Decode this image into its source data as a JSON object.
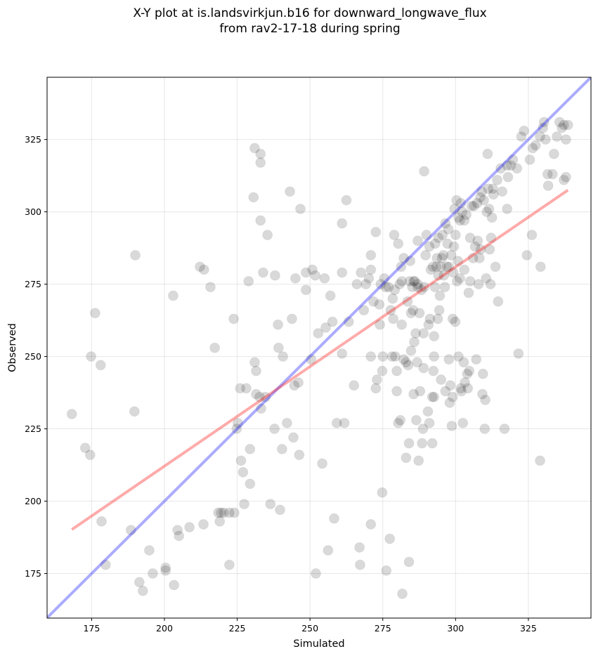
{
  "chart_data": {
    "type": "scatter",
    "title_line1": "X-Y plot at is.landsvirkjun.b16 for downward_longwave_flux",
    "title_line2": "from rav2-17-18 during spring",
    "xlabel": "Simulated",
    "ylabel": "Observed",
    "xlim": [
      159.7,
      346.5
    ],
    "ylim": [
      159.6,
      346.5
    ],
    "xticks": [
      175,
      200,
      225,
      250,
      275,
      300,
      325
    ],
    "yticks": [
      175,
      200,
      225,
      250,
      275,
      300,
      325
    ],
    "grid": true,
    "point_color": "#000000",
    "point_alpha": 0.15,
    "lines": [
      {
        "name": "1:1 line",
        "color": "#0000ff",
        "alpha": 0.33,
        "x": [
          159.7,
          346.5
        ],
        "y": [
          159.7,
          346.5
        ]
      },
      {
        "name": "regression",
        "color": "#ff0000",
        "alpha": 0.33,
        "x": [
          168.2,
          338.6
        ],
        "y": [
          190.2,
          307.5
        ]
      }
    ],
    "points": [
      [
        168.2,
        230.1
      ],
      [
        172.8,
        218.4
      ],
      [
        174.5,
        216
      ],
      [
        174.8,
        250
      ],
      [
        176.2,
        265
      ],
      [
        178.1,
        247
      ],
      [
        178.4,
        193
      ],
      [
        179.8,
        178
      ],
      [
        188.5,
        190
      ],
      [
        189.7,
        231
      ],
      [
        190,
        285
      ],
      [
        191.4,
        172
      ],
      [
        192.6,
        169
      ],
      [
        194.8,
        183
      ],
      [
        196,
        175
      ],
      [
        200.4,
        177
      ],
      [
        200.4,
        176
      ],
      [
        203,
        271
      ],
      [
        203.3,
        171
      ],
      [
        204.5,
        190
      ],
      [
        205,
        188
      ],
      [
        208.6,
        191
      ],
      [
        212.2,
        281
      ],
      [
        213.4,
        192
      ],
      [
        213.6,
        280
      ],
      [
        215.8,
        274
      ],
      [
        217.3,
        253
      ],
      [
        218.5,
        196
      ],
      [
        219.4,
        196
      ],
      [
        220.4,
        196
      ],
      [
        219,
        193
      ],
      [
        222.3,
        196
      ],
      [
        222.3,
        178
      ],
      [
        223.8,
        263
      ],
      [
        224,
        196
      ],
      [
        224.8,
        225
      ],
      [
        225.2,
        227
      ],
      [
        226,
        239
      ],
      [
        226.3,
        214
      ],
      [
        227,
        210
      ],
      [
        227.4,
        199
      ],
      [
        228.1,
        239
      ],
      [
        228.9,
        276
      ],
      [
        229.4,
        206
      ],
      [
        229.4,
        218
      ],
      [
        230.6,
        305
      ],
      [
        231,
        322
      ],
      [
        231,
        248
      ],
      [
        231.5,
        245
      ],
      [
        231.5,
        237
      ],
      [
        232.7,
        236
      ],
      [
        233,
        320
      ],
      [
        233,
        317
      ],
      [
        233,
        297
      ],
      [
        233.2,
        232
      ],
      [
        233.9,
        279
      ],
      [
        234.7,
        236
      ],
      [
        235.4,
        292
      ],
      [
        236.4,
        199
      ],
      [
        237.8,
        225
      ],
      [
        238,
        278
      ],
      [
        239,
        261
      ],
      [
        239.2,
        253
      ],
      [
        239.7,
        197
      ],
      [
        240.4,
        218
      ],
      [
        240.7,
        250
      ],
      [
        242.1,
        227
      ],
      [
        243.1,
        307
      ],
      [
        243.8,
        263
      ],
      [
        244.3,
        222
      ],
      [
        244.6,
        240
      ],
      [
        245,
        277
      ],
      [
        246,
        241
      ],
      [
        246.3,
        216
      ],
      [
        246.7,
        301
      ],
      [
        248.6,
        279
      ],
      [
        248.6,
        273
      ],
      [
        250.4,
        249
      ],
      [
        250.8,
        280
      ],
      [
        251.8,
        278
      ],
      [
        252,
        175
      ],
      [
        252.8,
        258
      ],
      [
        254.2,
        213
      ],
      [
        255,
        277
      ],
      [
        255.4,
        260
      ],
      [
        256.2,
        183
      ],
      [
        257,
        271
      ],
      [
        257.7,
        262
      ],
      [
        258.3,
        194
      ],
      [
        259.2,
        227
      ],
      [
        261,
        296
      ],
      [
        261,
        279
      ],
      [
        261,
        251
      ],
      [
        261.8,
        227
      ],
      [
        262.5,
        304
      ],
      [
        263.3,
        262
      ],
      [
        265.1,
        240
      ],
      [
        266.1,
        275
      ],
      [
        267,
        184
      ],
      [
        267.2,
        178
      ],
      [
        267.5,
        279
      ],
      [
        268.5,
        266
      ],
      [
        269.2,
        275
      ],
      [
        270.2,
        277
      ],
      [
        270.9,
        280
      ],
      [
        270.9,
        285
      ],
      [
        270.9,
        250
      ],
      [
        270.9,
        192
      ],
      [
        271.8,
        269
      ],
      [
        272.6,
        293
      ],
      [
        272.6,
        239
      ],
      [
        273,
        242
      ],
      [
        273.8,
        268
      ],
      [
        274,
        261
      ],
      [
        274.3,
        275
      ],
      [
        274.8,
        245
      ],
      [
        274.8,
        203
      ],
      [
        275,
        250
      ],
      [
        275.5,
        277
      ],
      [
        276,
        274
      ],
      [
        276.2,
        176
      ],
      [
        277,
        274
      ],
      [
        277.4,
        187
      ],
      [
        277.7,
        266
      ],
      [
        278.2,
        250
      ],
      [
        278.4,
        270
      ],
      [
        278.6,
        263
      ],
      [
        278.9,
        292
      ],
      [
        279.1,
        273
      ],
      [
        279.3,
        250
      ],
      [
        279.8,
        245
      ],
      [
        279.8,
        238
      ],
      [
        280.3,
        289
      ],
      [
        280.3,
        227
      ],
      [
        280.8,
        275
      ],
      [
        281,
        228
      ],
      [
        281.3,
        281
      ],
      [
        281.5,
        261
      ],
      [
        281.5,
        276
      ],
      [
        281.7,
        168
      ],
      [
        282.2,
        249
      ],
      [
        282.2,
        284
      ],
      [
        283,
        248
      ],
      [
        283,
        215
      ],
      [
        283.5,
        269
      ],
      [
        283.7,
        247
      ],
      [
        284,
        220
      ],
      [
        284,
        179
      ],
      [
        284.2,
        276
      ],
      [
        284.4,
        283
      ],
      [
        284.7,
        265
      ],
      [
        284.7,
        252
      ],
      [
        285.1,
        274
      ],
      [
        285.4,
        266
      ],
      [
        285.6,
        276
      ],
      [
        285.6,
        237
      ],
      [
        285.8,
        255
      ],
      [
        286,
        276
      ],
      [
        286.3,
        258
      ],
      [
        286.5,
        228
      ],
      [
        286.8,
        248
      ],
      [
        287,
        274
      ],
      [
        287,
        290
      ],
      [
        287,
        275
      ],
      [
        287.3,
        214
      ],
      [
        287.6,
        265
      ],
      [
        287.8,
        238
      ],
      [
        288.3,
        273
      ],
      [
        288.5,
        220
      ],
      [
        288.8,
        225
      ],
      [
        289,
        246
      ],
      [
        289,
        258
      ],
      [
        289.2,
        314
      ],
      [
        289.2,
        274
      ],
      [
        289.7,
        285
      ],
      [
        290,
        292
      ],
      [
        290.5,
        231
      ],
      [
        290.7,
        261
      ],
      [
        291,
        288
      ],
      [
        291,
        227
      ],
      [
        291.2,
        263
      ],
      [
        291.5,
        280
      ],
      [
        292,
        236
      ],
      [
        292,
        220
      ],
      [
        292.2,
        281
      ],
      [
        292.4,
        245
      ],
      [
        292.6,
        250
      ],
      [
        292.6,
        257
      ],
      [
        292.6,
        236
      ],
      [
        292.9,
        274
      ],
      [
        293,
        289
      ],
      [
        293.4,
        281
      ],
      [
        293.6,
        284
      ],
      [
        293.9,
        263
      ],
      [
        294.1,
        291
      ],
      [
        294.1,
        278
      ],
      [
        294.4,
        266
      ],
      [
        294.6,
        271
      ],
      [
        294.9,
        281
      ],
      [
        295,
        242
      ],
      [
        295.3,
        284
      ],
      [
        295.5,
        292
      ],
      [
        295.8,
        285
      ],
      [
        296,
        278
      ],
      [
        296.3,
        274
      ],
      [
        296.5,
        296
      ],
      [
        296.5,
        238
      ],
      [
        297,
        281
      ],
      [
        297.2,
        289
      ],
      [
        297.5,
        294
      ],
      [
        297.7,
        249
      ],
      [
        297.7,
        281
      ],
      [
        298,
        234
      ],
      [
        298.2,
        240
      ],
      [
        298.5,
        285
      ],
      [
        298.7,
        226
      ],
      [
        299,
        263
      ],
      [
        299,
        236
      ],
      [
        299.2,
        279
      ],
      [
        299.4,
        288
      ],
      [
        299.6,
        301
      ],
      [
        299.9,
        262
      ],
      [
        300,
        292
      ],
      [
        300.3,
        304
      ],
      [
        300.5,
        276
      ],
      [
        300.8,
        283
      ],
      [
        301,
        298
      ],
      [
        301,
        250
      ],
      [
        301.5,
        277
      ],
      [
        301.5,
        297
      ],
      [
        301.8,
        239
      ],
      [
        301.8,
        303
      ],
      [
        302,
        238
      ],
      [
        302.3,
        300
      ],
      [
        302.5,
        227
      ],
      [
        302.8,
        248
      ],
      [
        303,
        297
      ],
      [
        303,
        280
      ],
      [
        303.2,
        241
      ],
      [
        303.7,
        299
      ],
      [
        304,
        244
      ],
      [
        304.2,
        239
      ],
      [
        304.5,
        272
      ],
      [
        304.7,
        245
      ],
      [
        305,
        291
      ],
      [
        305,
        276
      ],
      [
        305.5,
        302
      ],
      [
        306,
        284
      ],
      [
        306.3,
        302
      ],
      [
        306.7,
        288
      ],
      [
        307.1,
        249
      ],
      [
        307.4,
        303
      ],
      [
        307.6,
        290
      ],
      [
        307.9,
        275
      ],
      [
        308.2,
        284
      ],
      [
        308.5,
        305
      ],
      [
        308.6,
        287
      ],
      [
        309,
        307
      ],
      [
        309.2,
        237
      ],
      [
        309.4,
        244
      ],
      [
        309.7,
        304
      ],
      [
        310,
        225
      ],
      [
        310.2,
        235
      ],
      [
        310.5,
        277
      ],
      [
        310.7,
        300
      ],
      [
        311,
        320
      ],
      [
        311.2,
        308
      ],
      [
        311.5,
        301
      ],
      [
        311.7,
        287
      ],
      [
        312,
        275
      ],
      [
        312.2,
        291
      ],
      [
        312.5,
        298
      ],
      [
        312.8,
        308
      ],
      [
        313,
        306
      ],
      [
        313.7,
        281
      ],
      [
        314.3,
        311
      ],
      [
        314.6,
        269
      ],
      [
        315.5,
        315
      ],
      [
        316,
        307
      ],
      [
        316.8,
        225
      ],
      [
        317.7,
        301
      ],
      [
        317.7,
        316
      ],
      [
        318,
        312
      ],
      [
        319,
        316
      ],
      [
        319.7,
        318
      ],
      [
        321.1,
        315
      ],
      [
        321.6,
        251
      ],
      [
        322.6,
        326
      ],
      [
        323.5,
        328
      ],
      [
        324.5,
        285
      ],
      [
        325.5,
        318
      ],
      [
        326.2,
        292
      ],
      [
        326.5,
        322
      ],
      [
        327.5,
        323
      ],
      [
        329,
        326
      ],
      [
        329,
        214
      ],
      [
        329.2,
        281
      ],
      [
        330,
        329
      ],
      [
        330.4,
        331
      ],
      [
        330.9,
        325
      ],
      [
        331.6,
        313
      ],
      [
        331.8,
        309
      ],
      [
        333.3,
        313
      ],
      [
        333.8,
        320
      ],
      [
        334.8,
        326
      ],
      [
        335.7,
        331
      ],
      [
        336.5,
        329
      ],
      [
        337.2,
        330
      ],
      [
        337.2,
        311
      ],
      [
        337.9,
        312
      ],
      [
        337.9,
        325
      ],
      [
        338.6,
        330
      ]
    ]
  }
}
